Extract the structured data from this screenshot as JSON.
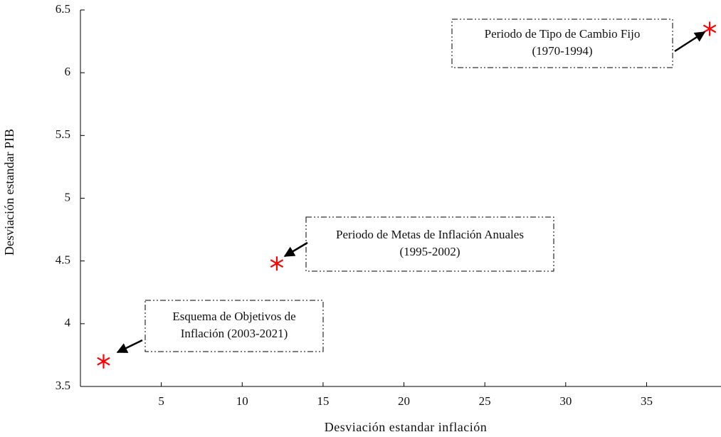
{
  "chart_data": {
    "type": "scatter",
    "x_label": "Desviación estandar inflación",
    "y_label": "Desviación estandar PIB",
    "series": [
      {
        "color": "#ff0000",
        "x": [
          1.43,
          12.14,
          38.9
        ],
        "values": [
          3.7,
          4.48,
          6.35
        ]
      }
    ],
    "xlim": [
      0,
      39.6
    ],
    "xticks": [
      5,
      10,
      15,
      20,
      25,
      30,
      35
    ],
    "ylim": [
      3.5,
      6.5
    ],
    "yticks": [
      3.5,
      4,
      4.5,
      5,
      5.5,
      6,
      6.5
    ],
    "annotations": [
      {
        "lines": [
          "Esquema de Objetivos de",
          "Inflación (2003-2021)"
        ]
      },
      {
        "lines": [
          "Periodo de Metas de Inflación Anuales",
          "(1995-2002)"
        ]
      },
      {
        "lines": [
          "Periodo de Tipo de Cambio Fijo",
          "(1970-1994)"
        ]
      }
    ]
  }
}
